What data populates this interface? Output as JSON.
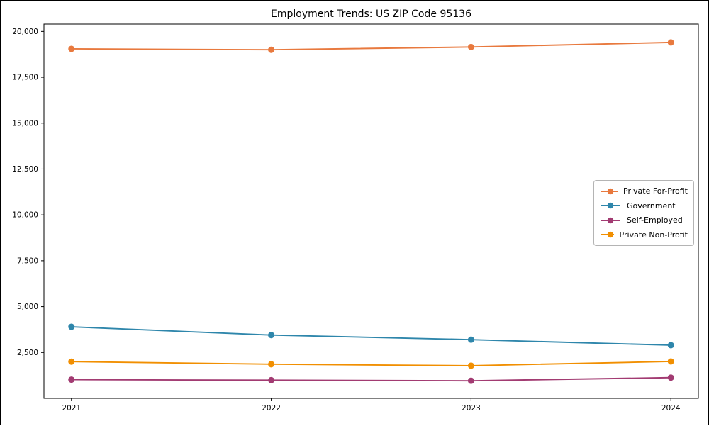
{
  "chart_data": {
    "type": "line",
    "title": "Employment Trends: US ZIP Code 95136",
    "x_tick_labels": [
      "2021",
      "2022",
      "2023",
      "2024"
    ],
    "x": [
      2021,
      2022,
      2023,
      2024
    ],
    "series": [
      {
        "name": "Private For-Profit",
        "color": "#E8793E",
        "values": [
          19050,
          19000,
          19150,
          19400
        ]
      },
      {
        "name": "Government",
        "color": "#2E86AB",
        "values": [
          3900,
          3450,
          3200,
          2900
        ]
      },
      {
        "name": "Self-Employed",
        "color": "#A23B72",
        "values": [
          1020,
          990,
          960,
          1130
        ]
      },
      {
        "name": "Private Non-Profit",
        "color": "#F18F01",
        "values": [
          2000,
          1860,
          1780,
          2010
        ]
      }
    ],
    "ylim": [
      0,
      20400
    ],
    "y_ticks": [
      2500,
      5000,
      7500,
      10000,
      12500,
      15000,
      17500,
      20000
    ],
    "y_tick_labels": [
      "2,500",
      "5,000",
      "7,500",
      "10,000",
      "12,500",
      "15,000",
      "17,500",
      "20,000"
    ],
    "xlabel": "",
    "ylabel": "",
    "grid": false,
    "legend_position": "center-right",
    "axis_color": "#000000",
    "background_color": "#ffffff"
  }
}
